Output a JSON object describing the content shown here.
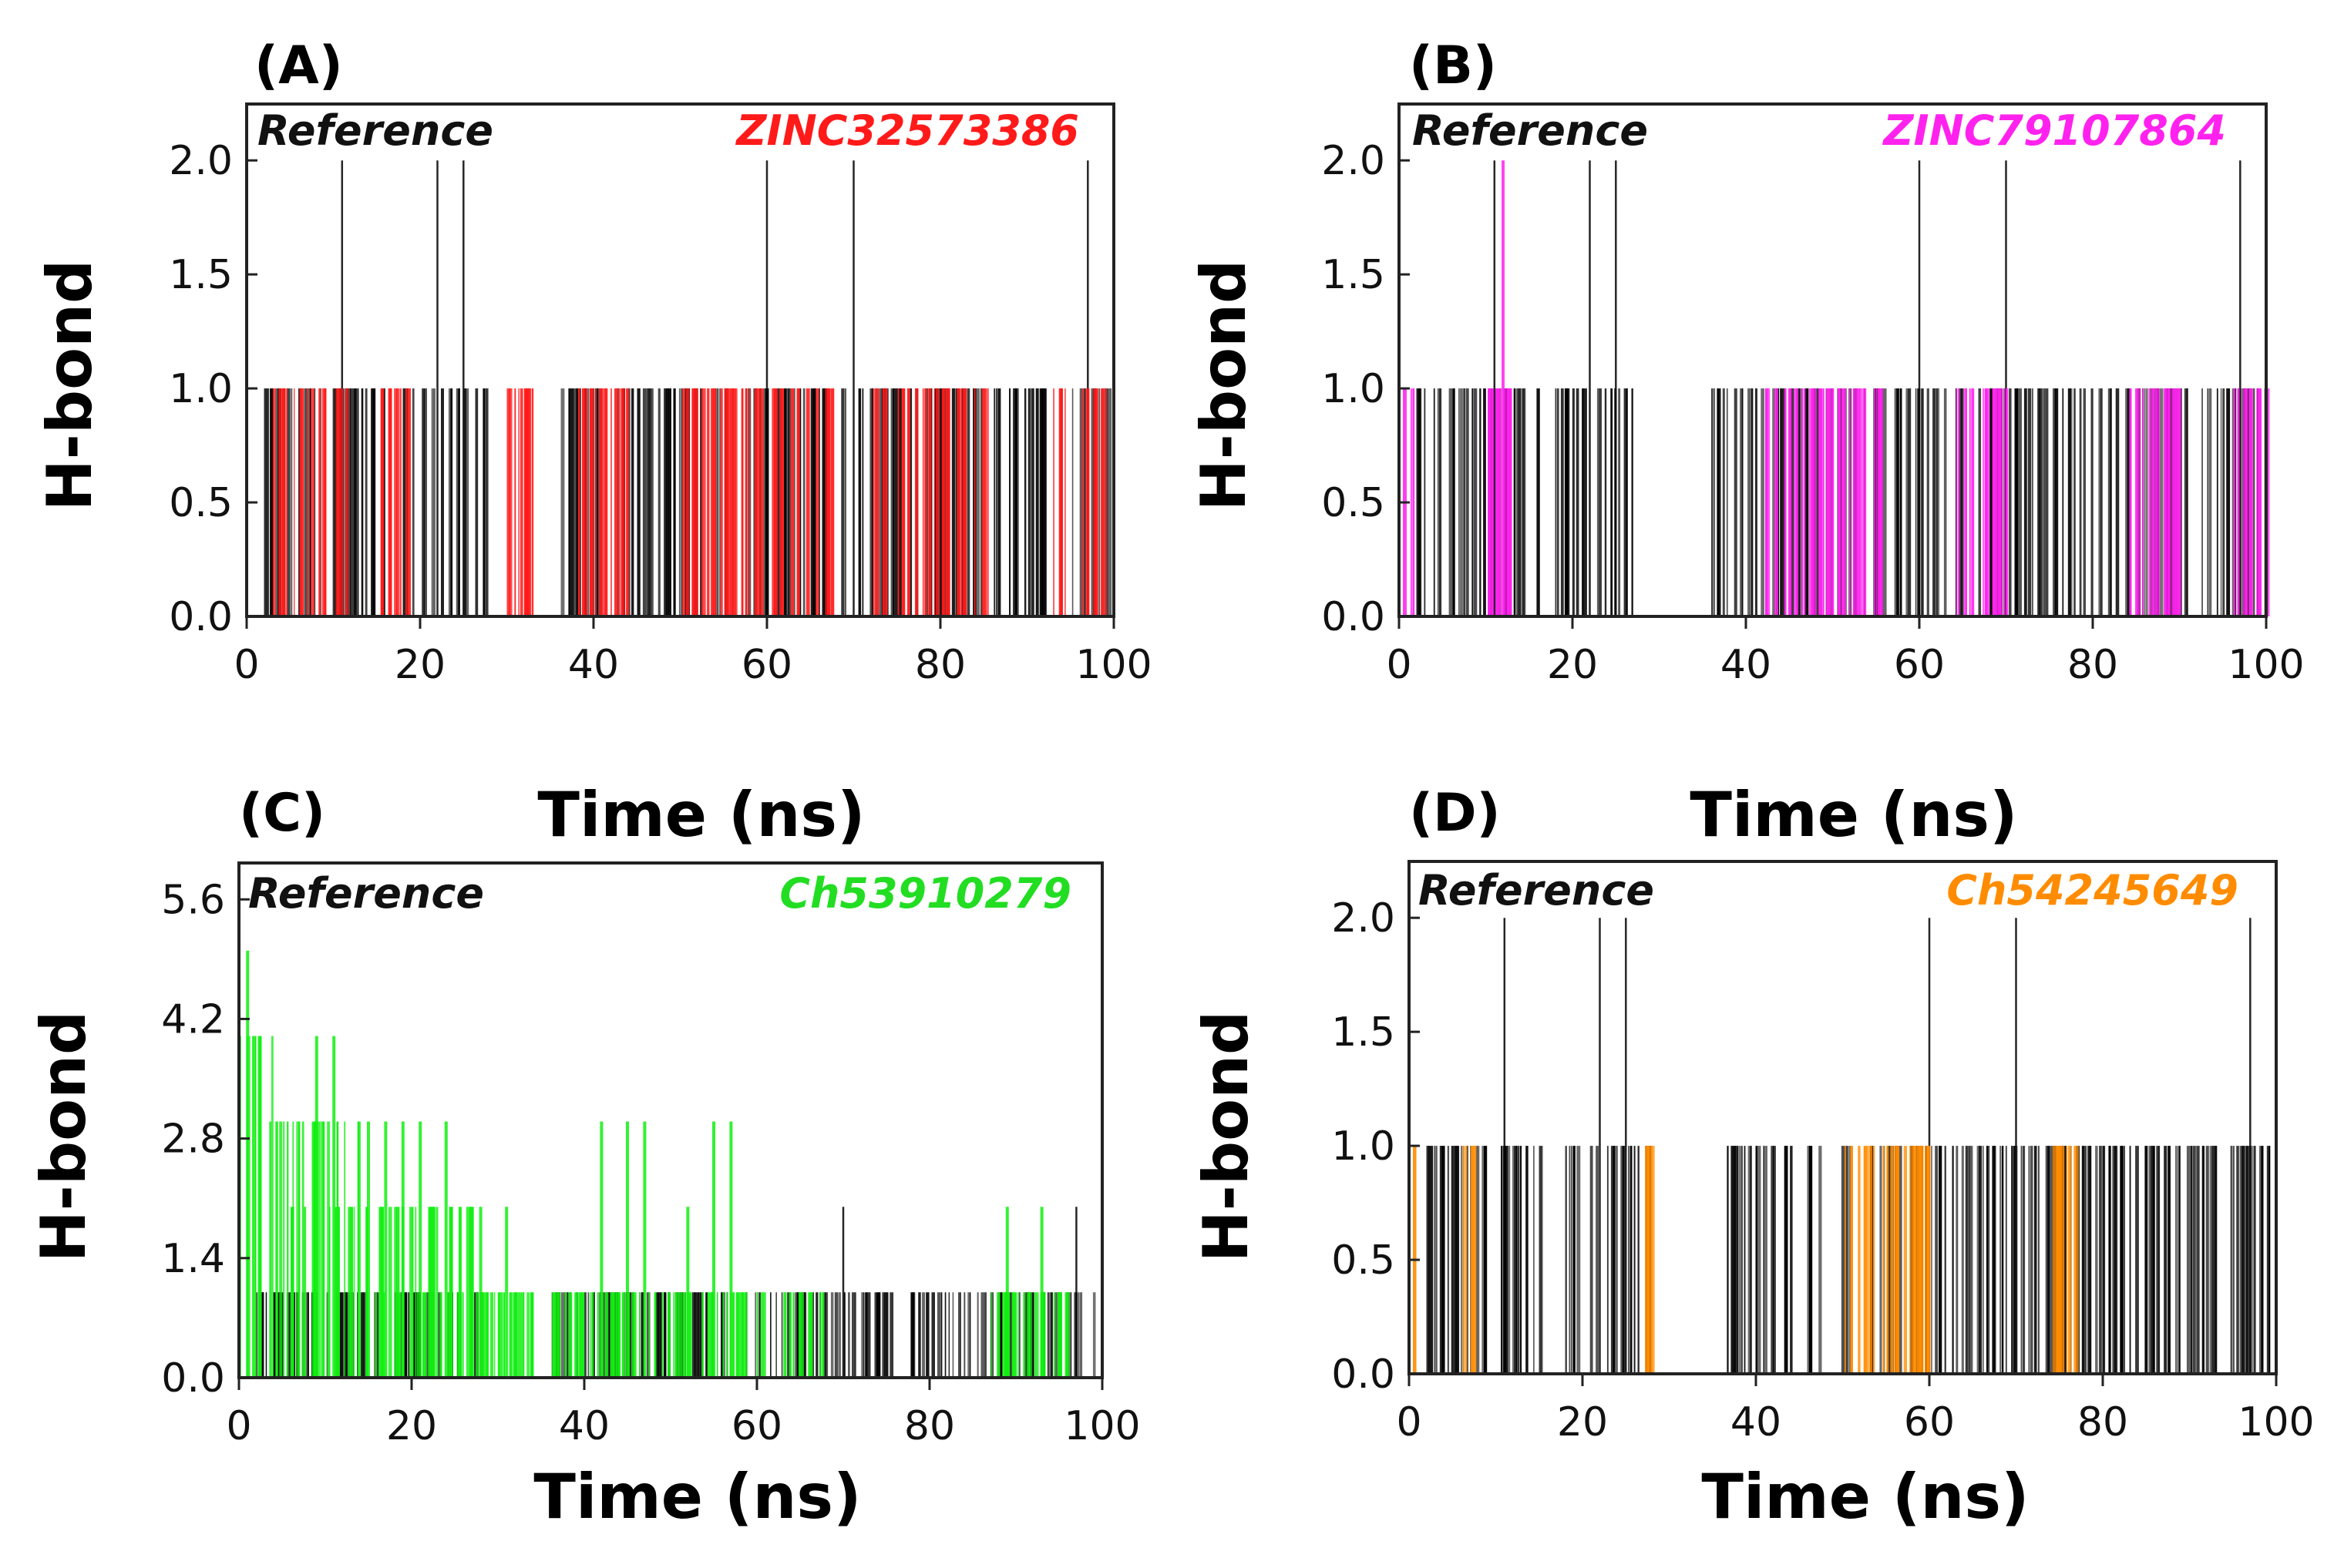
{
  "chart_data": [
    {
      "panel": "(A)",
      "type": "bar",
      "ylabel": "H-bond",
      "xlabel": "Time (ns)",
      "xlim": [
        0,
        100
      ],
      "ylim": [
        0,
        2.2
      ],
      "xticks": [
        "0",
        "20",
        "40",
        "60",
        "80",
        "100"
      ],
      "yticks": [
        "0.0",
        "0.5",
        "1.0",
        "1.5",
        "2.0"
      ],
      "legend": {
        "reference": "Reference",
        "compound": "ZINC32573386",
        "compound_color": "#ff1a1a",
        "reference_color": "#000000"
      },
      "series": [
        {
          "name": "Reference",
          "color": "#000000",
          "segments": [
            [
              2,
              16,
              1
            ],
            [
              18,
              28,
              1
            ],
            [
              36,
              100,
              1
            ]
          ],
          "spikes": [
            [
              11,
              2
            ],
            [
              22,
              2
            ],
            [
              25,
              2
            ],
            [
              60,
              2
            ],
            [
              70,
              2
            ],
            [
              97,
              2
            ]
          ]
        },
        {
          "name": "ZINC32573386",
          "color": "#ff1a1a",
          "segments": [
            [
              3,
              12,
              1
            ],
            [
              15,
              20,
              1
            ],
            [
              30,
              33,
              1
            ],
            [
              38,
              44,
              1
            ],
            [
              50,
              68,
              1
            ],
            [
              72,
              86,
              1
            ],
            [
              93,
              99,
              1
            ]
          ],
          "spikes": []
        }
      ]
    },
    {
      "panel": "(B)",
      "type": "bar",
      "ylabel": "H-bond",
      "xlabel": "Time (ns)",
      "xlim": [
        0,
        100
      ],
      "ylim": [
        0,
        2.2
      ],
      "xticks": [
        "0",
        "20",
        "40",
        "60",
        "80",
        "100"
      ],
      "yticks": [
        "0.0",
        "0.5",
        "1.0",
        "1.5",
        "2.0"
      ],
      "legend": {
        "reference": "Reference",
        "compound": "ZINC79107864",
        "compound_color": "#ff22ee",
        "reference_color": "#000000"
      },
      "series": [
        {
          "name": "Reference",
          "color": "#000000",
          "segments": [
            [
              2,
              16,
              1
            ],
            [
              18,
              28,
              1
            ],
            [
              36,
              100,
              1
            ]
          ],
          "spikes": [
            [
              11,
              2
            ],
            [
              22,
              2
            ],
            [
              25,
              2
            ],
            [
              60,
              2
            ],
            [
              70,
              2
            ],
            [
              97,
              2
            ]
          ]
        },
        {
          "name": "ZINC79107864",
          "color": "#ff22ee",
          "segments": [
            [
              0,
              2,
              1
            ],
            [
              10,
              13,
              1
            ],
            [
              42,
              56,
              1
            ],
            [
              64,
              70,
              1
            ],
            [
              84,
              90,
              1
            ],
            [
              96,
              100,
              1
            ]
          ],
          "spikes": [
            [
              12,
              2
            ]
          ]
        }
      ]
    },
    {
      "panel": "(C)",
      "type": "bar",
      "ylabel": "H-bond",
      "xlabel": "Time (ns)",
      "xlim": [
        0,
        100
      ],
      "ylim": [
        0,
        5.9
      ],
      "xticks": [
        "0",
        "20",
        "40",
        "60",
        "80",
        "100"
      ],
      "yticks": [
        "0.0",
        "1.4",
        "2.8",
        "4.2",
        "5.6"
      ],
      "legend": {
        "reference": "Reference",
        "compound": "Ch53910279",
        "compound_color": "#22dd22",
        "reference_color": "#000000"
      },
      "series": [
        {
          "name": "Reference",
          "color": "#000000",
          "segments": [
            [
              2,
              16,
              1
            ],
            [
              18,
              28,
              1
            ],
            [
              36,
              100,
              1
            ]
          ],
          "spikes": [
            [
              70,
              2
            ],
            [
              97,
              2
            ]
          ]
        },
        {
          "name": "Ch53910279",
          "color": "#11ee11",
          "segments": [
            [
              0,
              4,
              4
            ],
            [
              4,
              8,
              3
            ],
            [
              8,
              14,
              3
            ],
            [
              14,
              28,
              2
            ],
            [
              28,
              32,
              1
            ],
            [
              32,
              34,
              1
            ],
            [
              36,
              68,
              1
            ],
            [
              86,
              96,
              1
            ]
          ],
          "spikes": [
            [
              1,
              5
            ],
            [
              9,
              4
            ],
            [
              11,
              4
            ],
            [
              15,
              3
            ],
            [
              17,
              3
            ],
            [
              19,
              3
            ],
            [
              21,
              3
            ],
            [
              24,
              3
            ],
            [
              28,
              2
            ],
            [
              31,
              2
            ],
            [
              42,
              3
            ],
            [
              45,
              3
            ],
            [
              47,
              3
            ],
            [
              52,
              2
            ],
            [
              55,
              3
            ],
            [
              57,
              3
            ],
            [
              89,
              2
            ],
            [
              93,
              2
            ]
          ]
        }
      ]
    },
    {
      "panel": "(D)",
      "type": "bar",
      "ylabel": "H-bond",
      "xlabel": "Time (ns)",
      "xlim": [
        0,
        100
      ],
      "ylim": [
        0,
        2.2
      ],
      "xticks": [
        "0",
        "20",
        "40",
        "60",
        "80",
        "100"
      ],
      "yticks": [
        "0.0",
        "0.5",
        "1.0",
        "1.5",
        "2.0"
      ],
      "legend": {
        "reference": "Reference",
        "compound": "Ch54245649",
        "compound_color": "#ff8c00",
        "reference_color": "#000000"
      },
      "series": [
        {
          "name": "Reference",
          "color": "#000000",
          "segments": [
            [
              2,
              16,
              1
            ],
            [
              18,
              28,
              1
            ],
            [
              36,
              100,
              1
            ]
          ],
          "spikes": [
            [
              11,
              2
            ],
            [
              22,
              2
            ],
            [
              25,
              2
            ],
            [
              60,
              2
            ],
            [
              70,
              2
            ],
            [
              97,
              2
            ]
          ]
        },
        {
          "name": "Ch54245649",
          "color": "#ff8c00",
          "segments": [
            [
              0,
              1,
              1
            ],
            [
              6,
              8,
              1
            ],
            [
              27,
              28,
              1
            ],
            [
              50,
              60,
              1
            ],
            [
              74,
              77,
              1
            ]
          ],
          "spikes": []
        }
      ]
    }
  ]
}
